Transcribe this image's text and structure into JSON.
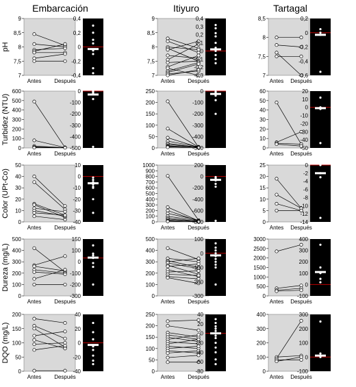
{
  "site_titles": [
    "Embarcación",
    "Itiyuro",
    "Tartagal"
  ],
  "row_labels": [
    "pH",
    "Turbidez (NTU)",
    "Color (UPt-Co)",
    "Dureza (mg/L)",
    "DQO (mg/L)"
  ],
  "x_categories": [
    "Antes",
    "Después"
  ],
  "colors": {
    "panel_bg": "#d9d9d9",
    "dot_bg": "#000000",
    "zero_line": "#c00000",
    "mean_bar": "#ffffff"
  },
  "chart_data": [
    {
      "type": "line",
      "site": "Embarcación",
      "variable": "pH",
      "ylim": [
        7,
        9
      ],
      "yticks": [
        "7",
        "7,5",
        "8",
        "8,5",
        "9"
      ],
      "pairs": [
        [
          8.45,
          8.05
        ],
        [
          8.1,
          8.0
        ],
        [
          7.9,
          7.95
        ],
        [
          7.85,
          8.1
        ],
        [
          7.8,
          7.8
        ],
        [
          7.6,
          7.75
        ],
        [
          7.5,
          7.5
        ]
      ],
      "diff": {
        "ylim": [
          -0.4,
          0.4
        ],
        "yticks": [
          "-0,4",
          "-0,2",
          "0",
          "0,2",
          "0,4"
        ],
        "points": [
          0.3,
          0.2,
          0.1,
          0.05,
          -0.05,
          -0.1,
          -0.3,
          -0.37
        ],
        "mean": -0.03
      }
    },
    {
      "type": "line",
      "site": "Itiyuro",
      "variable": "pH",
      "ylim": [
        7,
        9
      ],
      "yticks": [
        "7",
        "7,5",
        "8",
        "8,5",
        "9"
      ],
      "pairs": [
        [
          8.3,
          7.95
        ],
        [
          8.2,
          7.8
        ],
        [
          8.0,
          7.9
        ],
        [
          7.95,
          7.5
        ],
        [
          7.9,
          8.2
        ],
        [
          7.7,
          7.6
        ],
        [
          7.55,
          8.1
        ],
        [
          7.45,
          7.5
        ],
        [
          7.3,
          7.7
        ],
        [
          7.25,
          7.0
        ],
        [
          7.15,
          7.45
        ],
        [
          7.1,
          7.4
        ],
        [
          7.05,
          7.15
        ],
        [
          7.0,
          7.2
        ]
      ],
      "diff": {
        "ylim": [
          -0.3,
          0.4
        ],
        "yticks": [
          "-0,3",
          "-0,2",
          "-0,1",
          "0",
          "0,1",
          "0,2",
          "0,3",
          "0,4"
        ],
        "points": [
          0.32,
          0.28,
          0.22,
          0.18,
          0.1,
          0.04,
          0.0,
          -0.05,
          -0.1,
          -0.15
        ],
        "mean": 0.02
      }
    },
    {
      "type": "line",
      "site": "Tartagal",
      "variable": "pH",
      "ylim": [
        7,
        8.5
      ],
      "yticks": [
        "7",
        "7,5",
        "8",
        "8,5"
      ],
      "pairs": [
        [
          8.0,
          8.0
        ],
        [
          7.8,
          7.75
        ],
        [
          7.5,
          7.5
        ],
        [
          7.6,
          7.0
        ]
      ],
      "diff": {
        "ylim": [
          -0.6,
          0.2
        ],
        "yticks": [
          "-0,6",
          "-0,4",
          "-0,2",
          "0",
          "0,2"
        ],
        "points": [
          0.05,
          0.0,
          -0.03,
          -0.55
        ],
        "mean": -0.03
      }
    },
    {
      "type": "line",
      "site": "Embarcación",
      "variable": "Turbidez (NTU)",
      "ylim": [
        0,
        600
      ],
      "yticks": [
        "0",
        "100",
        "200",
        "300",
        "400",
        "500",
        "600"
      ],
      "pairs": [
        [
          490,
          5
        ],
        [
          80,
          5
        ],
        [
          20,
          3
        ],
        [
          10,
          4
        ],
        [
          5,
          3
        ],
        [
          3,
          2
        ]
      ],
      "diff": {
        "ylim": [
          -500,
          0
        ],
        "yticks": [
          "-500",
          "-400",
          "-300",
          "-200",
          "-100",
          "0"
        ],
        "points": [
          -3,
          -5,
          -10,
          -20,
          -70,
          -490
        ],
        "mean": -30
      }
    },
    {
      "type": "line",
      "site": "Itiyuro",
      "variable": "Turbidez (NTU)",
      "ylim": [
        0,
        250
      ],
      "yticks": [
        "0",
        "50",
        "100",
        "150",
        "200",
        "250"
      ],
      "pairs": [
        [
          205,
          3
        ],
        [
          85,
          4
        ],
        [
          45,
          3
        ],
        [
          30,
          5
        ],
        [
          20,
          3
        ],
        [
          15,
          4
        ],
        [
          10,
          2
        ],
        [
          8,
          3
        ],
        [
          5,
          2
        ],
        [
          3,
          2
        ]
      ],
      "diff": {
        "ylim": [
          -500,
          0
        ],
        "yticks": [
          "-500",
          "-400",
          "-300",
          "-200",
          "-100",
          "0"
        ],
        "points": [
          -5,
          -10,
          -20,
          -40,
          -80,
          -200
        ],
        "mean": -25
      }
    },
    {
      "type": "line",
      "site": "Tartagal",
      "variable": "Turbidez (NTU)",
      "ylim": [
        0,
        60
      ],
      "yticks": [
        "0",
        "10",
        "20",
        "30",
        "40",
        "50",
        "60"
      ],
      "pairs": [
        [
          48,
          4
        ],
        [
          6,
          17
        ],
        [
          5,
          4
        ],
        [
          4,
          2
        ]
      ],
      "diff": {
        "ylim": [
          -50,
          20
        ],
        "yticks": [
          "-50",
          "-40",
          "-30",
          "-20",
          "-10",
          "0",
          "10",
          "20"
        ],
        "points": [
          12,
          0,
          -2,
          -44
        ],
        "mean": -1
      }
    },
    {
      "type": "line",
      "site": "Embarcación",
      "variable": "Color (UPt-Co)",
      "ylim": [
        0,
        50
      ],
      "yticks": [
        "0",
        "10",
        "20",
        "30",
        "40",
        "50"
      ],
      "pairs": [
        [
          40,
          14
        ],
        [
          35,
          11
        ],
        [
          16,
          6
        ],
        [
          15,
          4
        ],
        [
          12,
          9
        ],
        [
          10,
          5
        ],
        [
          8,
          6
        ],
        [
          5,
          2
        ]
      ],
      "diff": {
        "ylim": [
          -40,
          10
        ],
        "yticks": [
          "-40",
          "-30",
          "-20",
          "-10",
          "0",
          "10"
        ],
        "points": [
          -1,
          -3,
          -5,
          -7,
          -9,
          -10,
          -20,
          -32
        ],
        "mean": -6
      }
    },
    {
      "type": "line",
      "site": "Itiyuro",
      "variable": "Color (UPt-Co)",
      "ylim": [
        0,
        1000
      ],
      "yticks": [
        "0",
        "100",
        "200",
        "300",
        "400",
        "500",
        "600",
        "700",
        "800",
        "900",
        "1000"
      ],
      "pairs": [
        [
          810,
          30
        ],
        [
          260,
          20
        ],
        [
          200,
          15
        ],
        [
          150,
          30
        ],
        [
          100,
          20
        ],
        [
          70,
          10
        ],
        [
          50,
          10
        ],
        [
          30,
          5
        ],
        [
          20,
          5
        ],
        [
          10,
          5
        ]
      ],
      "diff": {
        "ylim": [
          -800,
          200
        ],
        "yticks": [
          "-800",
          "-600",
          "-400",
          "-200",
          "0",
          "200"
        ],
        "points": [
          -10,
          -20,
          -40,
          -70,
          -130,
          -180,
          -780
        ],
        "mean": -60
      }
    },
    {
      "type": "line",
      "site": "Tartagal",
      "variable": "Color (UPt-Co)",
      "ylim": [
        0,
        25
      ],
      "yticks": [
        "0",
        "5",
        "10",
        "15",
        "20",
        "25"
      ],
      "pairs": [
        [
          19,
          6
        ],
        [
          12,
          6
        ],
        [
          8,
          5
        ],
        [
          5,
          5
        ]
      ],
      "diff": {
        "ylim": [
          -14,
          0
        ],
        "yticks": [
          "-14",
          "-12",
          "-10",
          "-8",
          "-6",
          "-4",
          "-2",
          "0"
        ],
        "points": [
          0,
          -2,
          -3,
          -13
        ],
        "mean": -2
      }
    },
    {
      "type": "line",
      "site": "Embarcación",
      "variable": "Dureza (mg/L)",
      "ylim": [
        0,
        500
      ],
      "yticks": [
        "0",
        "100",
        "200",
        "300",
        "400",
        "500"
      ],
      "pairs": [
        [
          420,
          210
        ],
        [
          270,
          350
        ],
        [
          260,
          220
        ],
        [
          230,
          200
        ],
        [
          210,
          190
        ],
        [
          150,
          230
        ],
        [
          100,
          100
        ]
      ],
      "diff": {
        "ylim": [
          -300,
          150
        ],
        "yticks": [
          "-300",
          "-200",
          "-100",
          "0",
          "100",
          "150"
        ],
        "points": [
          100,
          35,
          20,
          0,
          -40,
          -70,
          -210
        ],
        "mean": 3
      }
    },
    {
      "type": "line",
      "site": "Itiyuro",
      "variable": "Dureza (mg/L)",
      "ylim": [
        0,
        500
      ],
      "yticks": [
        "0",
        "100",
        "200",
        "300",
        "400",
        "500"
      ],
      "pairs": [
        [
          420,
          320
        ],
        [
          330,
          300
        ],
        [
          310,
          250
        ],
        [
          300,
          330
        ],
        [
          290,
          240
        ],
        [
          270,
          190
        ],
        [
          260,
          280
        ],
        [
          230,
          170
        ],
        [
          210,
          220
        ],
        [
          190,
          180
        ],
        [
          170,
          150
        ],
        [
          160,
          110
        ]
      ],
      "diff": {
        "ylim": [
          -300,
          100
        ],
        "yticks": [
          "-300",
          "-200",
          "-100",
          "0",
          "100"
        ],
        "points": [
          70,
          40,
          20,
          0,
          -20,
          -40,
          -60,
          -80,
          -100,
          -220
        ],
        "mean": -15
      }
    },
    {
      "type": "line",
      "site": "Tartagal",
      "variable": "Dureza (mg/L)",
      "ylim": [
        0,
        3000
      ],
      "yticks": [
        "0",
        "500",
        "1000",
        "1500",
        "2000",
        "2500",
        "3000"
      ],
      "pairs": [
        [
          2350,
          2700
        ],
        [
          400,
          550
        ],
        [
          300,
          400
        ],
        [
          250,
          300
        ]
      ],
      "diff": {
        "ylim": [
          -100,
          400
        ],
        "yticks": [
          "-100",
          "0",
          "100",
          "200",
          "300",
          "400"
        ],
        "points": [
          350,
          150,
          100,
          50,
          20
        ],
        "mean": 110
      }
    },
    {
      "type": "line",
      "site": "Embarcación",
      "variable": "DQO (mg/L)",
      "ylim": [
        0,
        200
      ],
      "yticks": [
        "0",
        "50",
        "100",
        "150",
        "200"
      ],
      "pairs": [
        [
          185,
          170
        ],
        [
          160,
          115
        ],
        [
          150,
          85
        ],
        [
          125,
          140
        ],
        [
          110,
          80
        ],
        [
          95,
          100
        ],
        [
          75,
          90
        ],
        [
          2,
          2
        ]
      ],
      "diff": {
        "ylim": [
          -40,
          40
        ],
        "yticks": [
          "-40",
          "-20",
          "0",
          "20",
          "40"
        ],
        "points": [
          28,
          15,
          5,
          -5,
          -10,
          -18,
          -25,
          -30
        ],
        "mean": -3
      }
    },
    {
      "type": "line",
      "site": "Itiyuro",
      "variable": "DQO (mg/L)",
      "ylim": [
        0,
        250
      ],
      "yticks": [
        "0",
        "50",
        "100",
        "150",
        "200",
        "250"
      ],
      "pairs": [
        [
          220,
          225
        ],
        [
          200,
          180
        ],
        [
          170,
          150
        ],
        [
          160,
          140
        ],
        [
          150,
          130
        ],
        [
          140,
          160
        ],
        [
          130,
          120
        ],
        [
          120,
          140
        ],
        [
          110,
          100
        ],
        [
          100,
          110
        ],
        [
          90,
          80
        ],
        [
          80,
          90
        ],
        [
          60,
          70
        ],
        [
          40,
          40
        ]
      ],
      "diff": {
        "ylim": [
          -80,
          40
        ],
        "yticks": [
          "-80",
          "-60",
          "-40",
          "-20",
          "0",
          "20",
          "40"
        ],
        "points": [
          30,
          22,
          15,
          10,
          5,
          0,
          -5,
          -10,
          -20,
          -30,
          -40,
          -55,
          -65
        ],
        "mean": 0
      }
    },
    {
      "type": "line",
      "site": "Tartagal",
      "variable": "DQO (mg/L)",
      "ylim": [
        0,
        400
      ],
      "yticks": [
        "0",
        "100",
        "200",
        "300",
        "400"
      ],
      "pairs": [
        [
          100,
          110
        ],
        [
          90,
          355
        ],
        [
          80,
          80
        ],
        [
          70,
          100
        ]
      ],
      "diff": {
        "ylim": [
          -100,
          300
        ],
        "yticks": [
          "-100",
          "0",
          "100",
          "200",
          "300"
        ],
        "points": [
          250,
          25,
          10,
          0
        ],
        "mean": 10
      }
    }
  ]
}
